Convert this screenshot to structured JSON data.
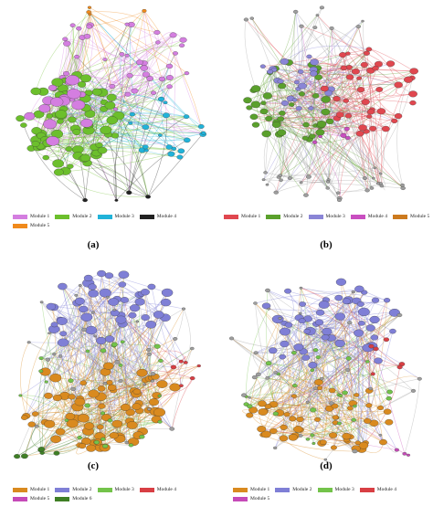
{
  "panels": [
    {
      "id": "a",
      "caption": "(a)",
      "modules": [
        {
          "label": "Module 1",
          "color": "#d47ee0"
        },
        {
          "label": "Module 2",
          "color": "#6cbf2c"
        },
        {
          "label": "Module 3",
          "color": "#21b3d9"
        },
        {
          "label": "Module 4",
          "color": "#222222"
        },
        {
          "label": "Module 5",
          "color": "#f08a1c"
        }
      ]
    },
    {
      "id": "b",
      "caption": "(b)",
      "modules": [
        {
          "label": "Module 1",
          "color": "#e0474f"
        },
        {
          "label": "Module 2",
          "color": "#5aa02c"
        },
        {
          "label": "Module 3",
          "color": "#8a85d6"
        },
        {
          "label": "Module 4",
          "color": "#c94fc0"
        },
        {
          "label": "Module 5",
          "color": "#cc7a1e"
        }
      ]
    },
    {
      "id": "c",
      "caption": "(c)",
      "modules": [
        {
          "label": "Module 1",
          "color": "#d98a1f"
        },
        {
          "label": "Module 2",
          "color": "#7f7fd6"
        },
        {
          "label": "Module 3",
          "color": "#73c34a"
        },
        {
          "label": "Module 4",
          "color": "#d83f44"
        },
        {
          "label": "Module 5",
          "color": "#c64ab8"
        },
        {
          "label": "Module 6",
          "color": "#3f7f25"
        }
      ]
    },
    {
      "id": "d",
      "caption": "(d)",
      "modules": [
        {
          "label": "Module 1",
          "color": "#d98a1f"
        },
        {
          "label": "Module 2",
          "color": "#7f7fd6"
        },
        {
          "label": "Module 3",
          "color": "#73c34a"
        },
        {
          "label": "Module 4",
          "color": "#d83f44"
        },
        {
          "label": "Module 5",
          "color": "#c64ab8"
        }
      ]
    }
  ]
}
